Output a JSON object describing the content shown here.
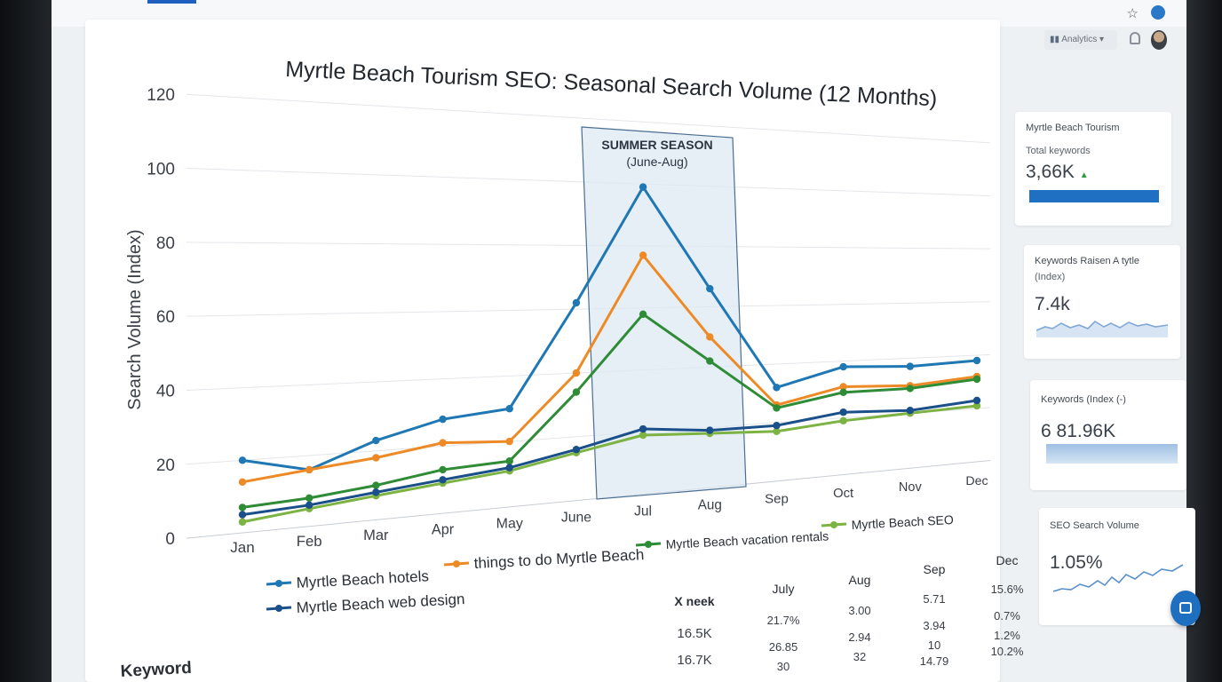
{
  "app": {
    "dropdown_label": "Analytics",
    "dropdown_icon": "chevron-down-icon"
  },
  "chart": {
    "title": "Myrtle Beach Tourism SEO: Seasonal Search Volume (12 Months)"
  },
  "chart_data": {
    "type": "line",
    "ylabel": "Search Volume (Index)",
    "xlabel": "",
    "ylim": [
      0,
      120
    ],
    "yticks": [
      0,
      20,
      40,
      60,
      80,
      100,
      120
    ],
    "categories": [
      "Jan",
      "Feb",
      "Mar",
      "Apr",
      "May",
      "June",
      "Jul",
      "Aug",
      "Sep",
      "Oct",
      "Nov",
      "Dec"
    ],
    "grid": true,
    "legend_position": "bottom-left",
    "annotation": {
      "text_line1": "SUMMER SEASON",
      "text_line2": "(June-Aug)",
      "from": "June",
      "to": "Aug"
    },
    "series": [
      {
        "name": "Myrtle Beach hotels",
        "color": "#1f77b4",
        "values": [
          20,
          16,
          23,
          28,
          30,
          62,
          99,
          66,
          32,
          38,
          37,
          38
        ]
      },
      {
        "name": "things to do Myrtle Beach",
        "color": "#ee8a26",
        "values": [
          14,
          16,
          18,
          21,
          20,
          40,
          77,
          50,
          26,
          31,
          30,
          32
        ]
      },
      {
        "name": "Myrtle Beach vacation rentals",
        "color": "#2e8b36",
        "values": [
          7,
          8,
          10,
          13,
          14,
          34,
          58,
          42,
          25,
          29,
          29,
          31
        ]
      },
      {
        "name": "Myrtle Beach SEO",
        "color": "#7cb342",
        "values": [
          3,
          5,
          7,
          9,
          11,
          15,
          19,
          18,
          17,
          19,
          20,
          21
        ]
      },
      {
        "name": "Myrtle Beach web design",
        "color": "#1b4f8a",
        "values": [
          5,
          6,
          8,
          10,
          12,
          16,
          21,
          19,
          19,
          22,
          21,
          23
        ]
      }
    ]
  },
  "table": {
    "row_label": "Keyword",
    "headers": [
      "X neek",
      "July",
      "Aug",
      "Sep",
      "Dec"
    ],
    "rows": [
      [
        "16.5K",
        "21.7%",
        "3.00",
        "5.71",
        "15.6%"
      ],
      [
        "16.7K",
        "26.85",
        "2.94",
        "3.94",
        "0.7%"
      ],
      [
        "",
        "30",
        "32",
        "10",
        "1.2%"
      ],
      [
        "",
        "",
        "",
        "14.79",
        "10.2%"
      ]
    ]
  },
  "sidebar": {
    "card1": {
      "title": "Myrtle Beach Tourism",
      "subtitle": "Total keywords",
      "value": "3,66K",
      "trend": "▲",
      "color": "#1f6fc2"
    },
    "card2": {
      "title_line1": "Keywords Raisen A tytle",
      "title_line2": "(Index)",
      "value": "7.4k",
      "color": "#8cb3dc"
    },
    "card3": {
      "title": "Keywords (Index (-)",
      "value": "6 81.96K",
      "color": "#8cb3dc"
    },
    "card4": {
      "title": "SEO Search Volume",
      "value": "1.05%",
      "color": "#5a8fcc"
    }
  }
}
